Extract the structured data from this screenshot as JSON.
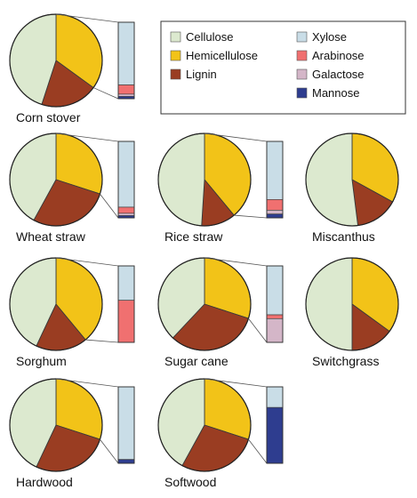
{
  "chart_data": {
    "type": "pie",
    "legend": {
      "position": "top-right",
      "entries": [
        {
          "name": "Cellulose",
          "color": "#dce9cf"
        },
        {
          "name": "Hemicellulose",
          "color": "#f2c318"
        },
        {
          "name": "Lignin",
          "color": "#9a3d22"
        },
        {
          "name": "Xylose",
          "color": "#c9dde7"
        },
        {
          "name": "Arabinose",
          "color": "#f07070"
        },
        {
          "name": "Galactose",
          "color": "#d4b6c8"
        },
        {
          "name": "Mannose",
          "color": "#2e3d8f"
        }
      ]
    },
    "charts": [
      {
        "name": "Corn stover",
        "composition": {
          "Cellulose": 45,
          "Hemicellulose": 35,
          "Lignin": 20
        },
        "hemicellulose_sugars": {
          "Xylose": 82,
          "Arabinose": 12,
          "Galactose": 3,
          "Mannose": 3
        }
      },
      {
        "name": "Wheat straw",
        "composition": {
          "Cellulose": 42,
          "Hemicellulose": 30,
          "Lignin": 28
        },
        "hemicellulose_sugars": {
          "Xylose": 86,
          "Arabinose": 8,
          "Galactose": 3,
          "Mannose": 3
        }
      },
      {
        "name": "Rice straw",
        "composition": {
          "Cellulose": 49,
          "Hemicellulose": 39,
          "Lignin": 12
        },
        "hemicellulose_sugars": {
          "Xylose": 76,
          "Arabinose": 14,
          "Galactose": 5,
          "Mannose": 5
        }
      },
      {
        "name": "Miscanthus",
        "composition": {
          "Cellulose": 52,
          "Hemicellulose": 33,
          "Lignin": 15
        },
        "hemicellulose_sugars": null
      },
      {
        "name": "Sorghum",
        "composition": {
          "Cellulose": 43,
          "Hemicellulose": 39,
          "Lignin": 18
        },
        "hemicellulose_sugars": {
          "Xylose": 45,
          "Arabinose": 55,
          "Galactose": 0,
          "Mannose": 0
        }
      },
      {
        "name": "Sugar cane",
        "composition": {
          "Cellulose": 38,
          "Hemicellulose": 30,
          "Lignin": 32
        },
        "hemicellulose_sugars": {
          "Xylose": 64,
          "Arabinose": 5,
          "Galactose": 31,
          "Mannose": 0
        }
      },
      {
        "name": "Switchgrass",
        "composition": {
          "Cellulose": 50,
          "Hemicellulose": 35,
          "Lignin": 15
        },
        "hemicellulose_sugars": null
      },
      {
        "name": "Hardwood",
        "composition": {
          "Cellulose": 43,
          "Hemicellulose": 30,
          "Lignin": 27
        },
        "hemicellulose_sugars": {
          "Xylose": 95,
          "Arabinose": 0,
          "Galactose": 0,
          "Mannose": 5
        }
      },
      {
        "name": "Softwood",
        "composition": {
          "Cellulose": 42,
          "Hemicellulose": 30,
          "Lignin": 28
        },
        "hemicellulose_sugars": {
          "Xylose": 27,
          "Arabinose": 0,
          "Galactose": 0,
          "Mannose": 73
        }
      }
    ]
  }
}
